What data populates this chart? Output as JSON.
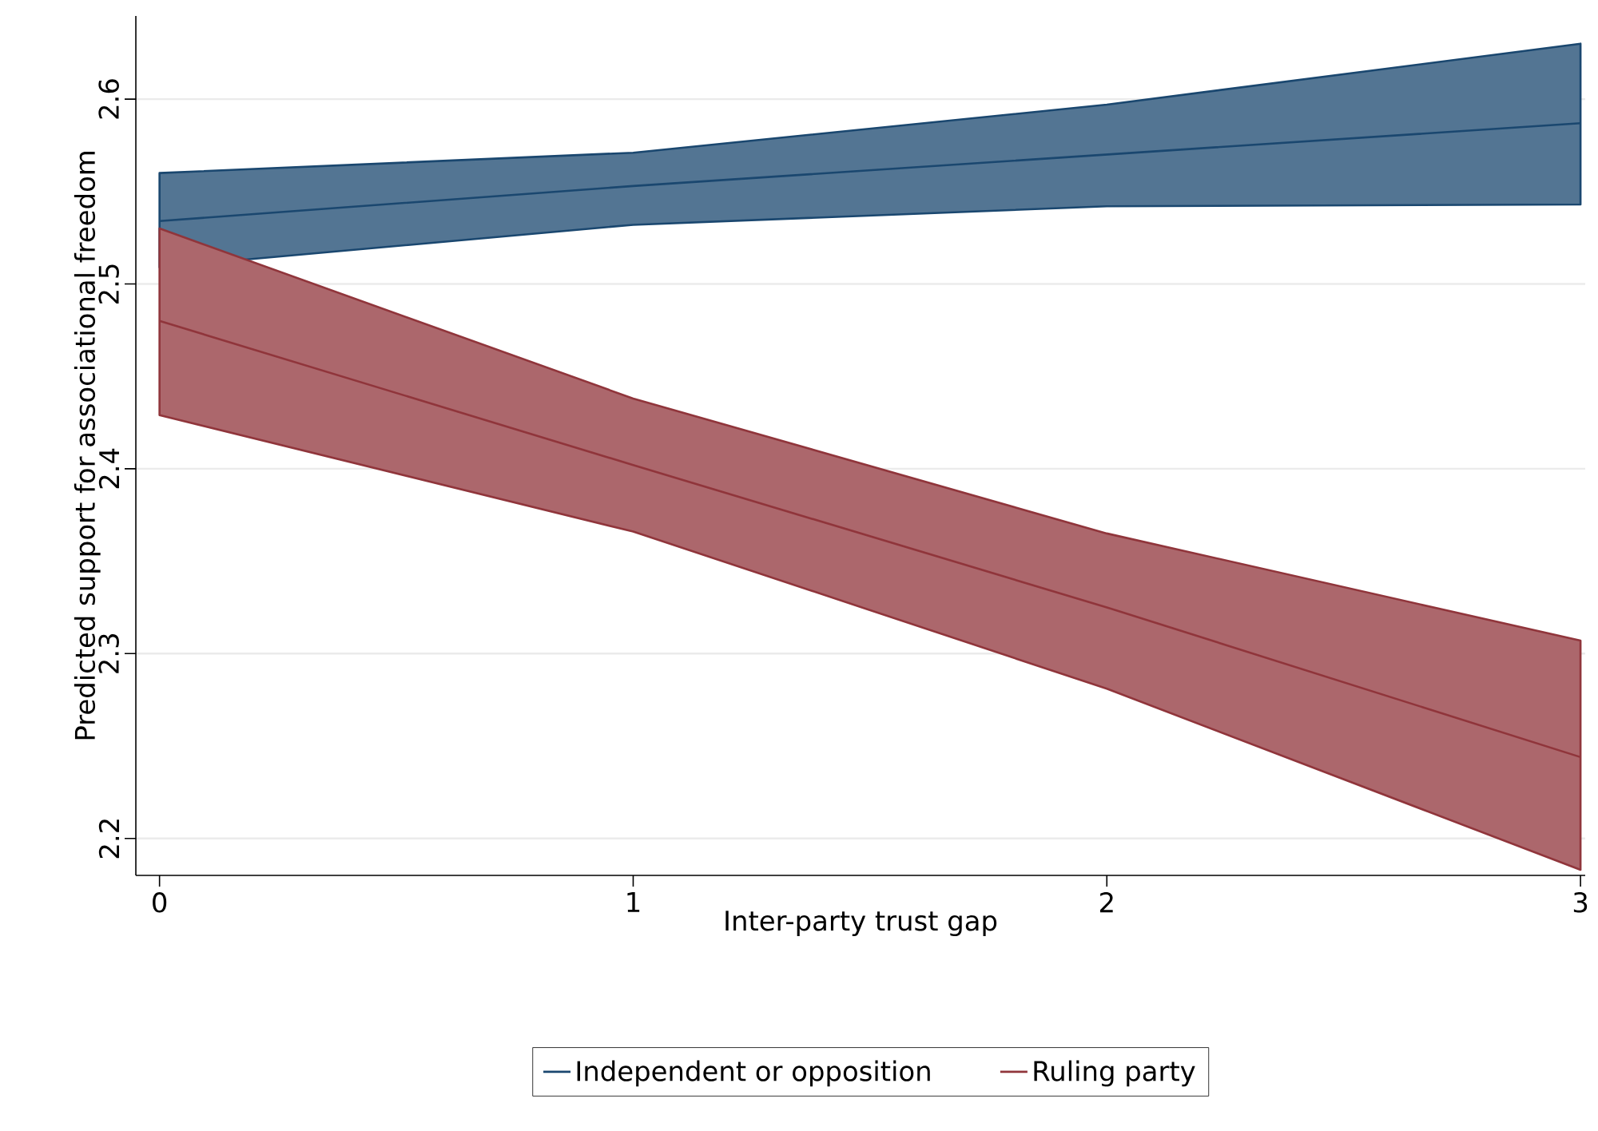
{
  "chart_data": {
    "type": "line",
    "xlabel": "Inter-party trust gap",
    "ylabel": "Predicted support for associational freedom",
    "x": [
      0,
      1,
      2,
      3
    ],
    "series": [
      {
        "name": "Independent or opposition",
        "color": "#1a476f",
        "values": [
          2.534,
          2.553,
          2.57,
          2.587
        ],
        "lower": [
          2.509,
          2.532,
          2.542,
          2.543
        ],
        "upper": [
          2.56,
          2.571,
          2.597,
          2.63
        ]
      },
      {
        "name": "Ruling party",
        "color": "#90353b",
        "values": [
          2.48,
          2.402,
          2.325,
          2.244
        ],
        "lower": [
          2.429,
          2.366,
          2.281,
          2.183
        ],
        "upper": [
          2.53,
          2.438,
          2.365,
          2.307
        ]
      }
    ],
    "xlim": [
      -0.05,
      3.01
    ],
    "ylim": [
      2.18,
      2.645
    ],
    "xticks": [
      0,
      1,
      2,
      3
    ],
    "yticks": [
      2.2,
      2.3,
      2.4,
      2.5,
      2.6
    ],
    "grid": "y",
    "legend": "bottom",
    "marker": "none",
    "line_style": "solid"
  }
}
